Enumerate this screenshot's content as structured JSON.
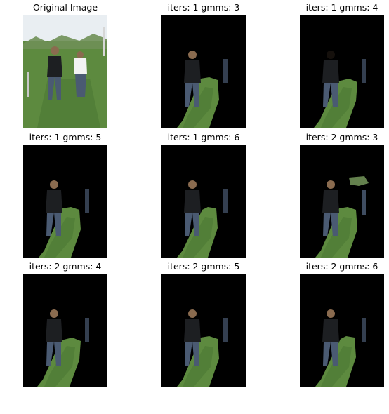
{
  "figure": {
    "panels": [
      {
        "title": "Original Image",
        "kind": "original"
      },
      {
        "title": "iters: 1 gmms: 3",
        "kind": "segmentation"
      },
      {
        "title": "iters: 1 gmms: 4",
        "kind": "segmentation"
      },
      {
        "title": "iters: 1 gmms: 5",
        "kind": "segmentation"
      },
      {
        "title": "iters: 1 gmms: 6",
        "kind": "segmentation"
      },
      {
        "title": "iters: 2 gmms: 3",
        "kind": "segmentation"
      },
      {
        "title": "iters: 2 gmms: 4",
        "kind": "segmentation"
      },
      {
        "title": "iters: 2 gmms: 5",
        "kind": "segmentation"
      },
      {
        "title": "iters: 2 gmms: 6",
        "kind": "segmentation"
      }
    ],
    "colors": {
      "background": "#000000",
      "sky": "#e9eef2",
      "grass": "#5d8a3f",
      "grass_dark": "#3f6a2b",
      "trees": "#6f8f56",
      "jacket": "#1d1f22",
      "jeans": "#4a5a72",
      "white_shirt": "#f3f3f3",
      "skin": "#c79b84",
      "hair": "#8a6b4f"
    }
  }
}
